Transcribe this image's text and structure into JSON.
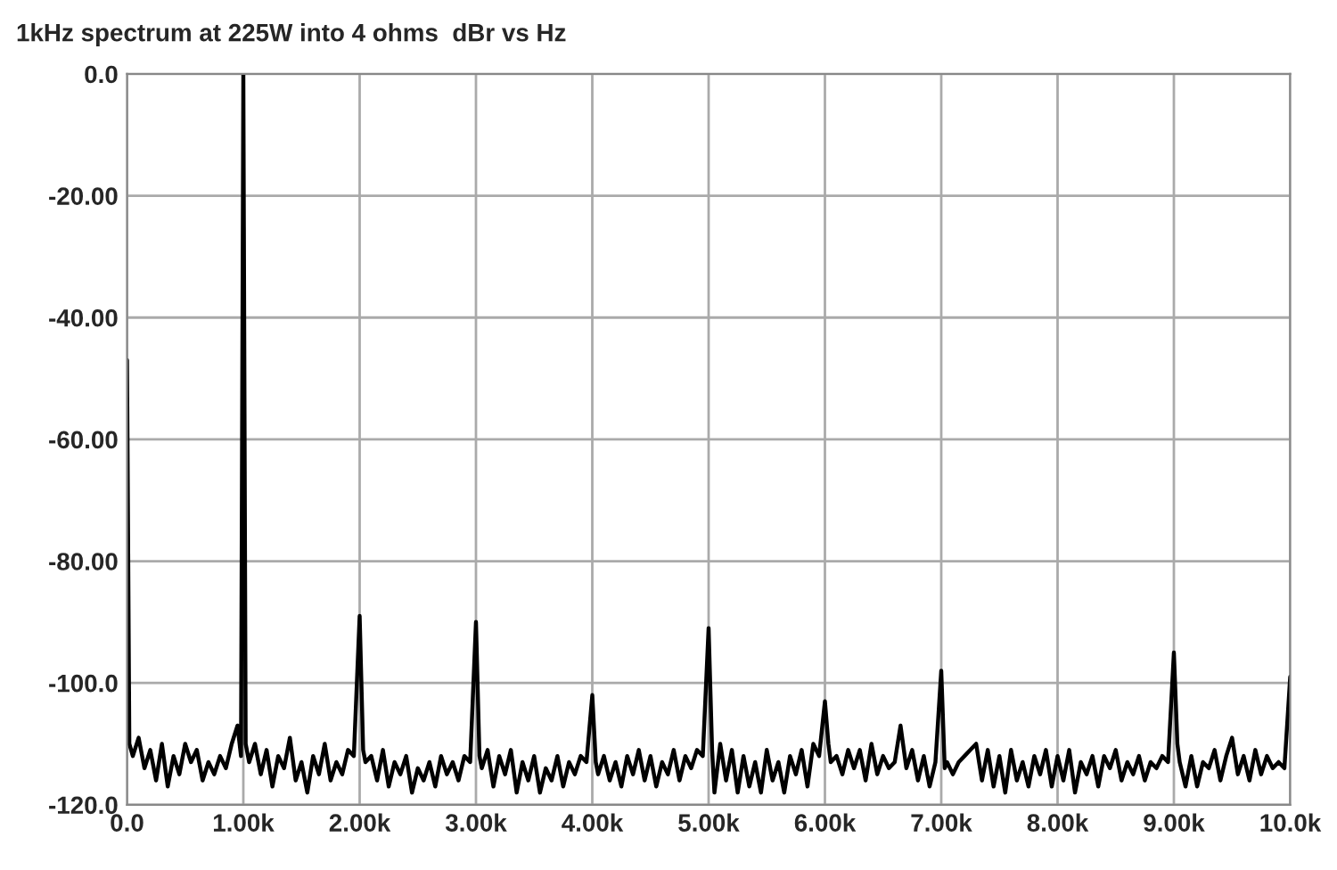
{
  "chart_data": {
    "type": "line",
    "title": "1kHz spectrum at 225W into 4 ohms  dBr vs Hz",
    "xlim": [
      0,
      10000
    ],
    "ylim": [
      -120,
      0
    ],
    "xticks": [
      {
        "value": 0,
        "label": "0.0"
      },
      {
        "value": 1000,
        "label": "1.00k"
      },
      {
        "value": 2000,
        "label": "2.00k"
      },
      {
        "value": 3000,
        "label": "3.00k"
      },
      {
        "value": 4000,
        "label": "4.00k"
      },
      {
        "value": 5000,
        "label": "5.00k"
      },
      {
        "value": 6000,
        "label": "6.00k"
      },
      {
        "value": 7000,
        "label": "7.00k"
      },
      {
        "value": 8000,
        "label": "8.00k"
      },
      {
        "value": 9000,
        "label": "9.00k"
      },
      {
        "value": 10000,
        "label": "10.0k"
      }
    ],
    "yticks": [
      {
        "value": 0,
        "label": "0.0"
      },
      {
        "value": -20,
        "label": "-20.00"
      },
      {
        "value": -40,
        "label": "-40.00"
      },
      {
        "value": -60,
        "label": "-60.00"
      },
      {
        "value": -80,
        "label": "-80.00"
      },
      {
        "value": -100,
        "label": "-100.0"
      },
      {
        "value": -120,
        "label": "-120.0"
      }
    ],
    "grid": true,
    "legend": false,
    "marker": "none",
    "line_style": "solid",
    "series": [
      {
        "color": "#000000",
        "x": [
          0,
          20,
          50,
          100,
          150,
          200,
          250,
          300,
          350,
          400,
          450,
          500,
          550,
          600,
          650,
          700,
          750,
          800,
          850,
          900,
          950,
          980,
          1000,
          1020,
          1050,
          1100,
          1150,
          1200,
          1250,
          1300,
          1350,
          1400,
          1450,
          1500,
          1550,
          1600,
          1650,
          1700,
          1750,
          1800,
          1850,
          1900,
          1950,
          2000,
          2030,
          2050,
          2100,
          2150,
          2200,
          2250,
          2300,
          2350,
          2400,
          2450,
          2500,
          2550,
          2600,
          2650,
          2700,
          2750,
          2800,
          2850,
          2900,
          2950,
          3000,
          3030,
          3050,
          3100,
          3150,
          3200,
          3250,
          3300,
          3350,
          3400,
          3450,
          3500,
          3550,
          3600,
          3650,
          3700,
          3750,
          3800,
          3850,
          3900,
          3950,
          4000,
          4030,
          4050,
          4100,
          4150,
          4200,
          4250,
          4300,
          4350,
          4400,
          4450,
          4500,
          4550,
          4600,
          4650,
          4700,
          4750,
          4800,
          4850,
          4900,
          4950,
          5000,
          5030,
          5050,
          5100,
          5150,
          5200,
          5250,
          5300,
          5350,
          5400,
          5450,
          5500,
          5550,
          5600,
          5650,
          5700,
          5750,
          5800,
          5850,
          5900,
          5950,
          6000,
          6030,
          6050,
          6100,
          6150,
          6200,
          6250,
          6300,
          6350,
          6400,
          6450,
          6500,
          6550,
          6600,
          6650,
          6700,
          6750,
          6800,
          6850,
          6900,
          6950,
          7000,
          7030,
          7050,
          7100,
          7150,
          7200,
          7250,
          7300,
          7350,
          7400,
          7450,
          7500,
          7550,
          7600,
          7650,
          7700,
          7750,
          7800,
          7850,
          7900,
          7950,
          8000,
          8050,
          8100,
          8150,
          8200,
          8250,
          8300,
          8350,
          8400,
          8450,
          8500,
          8550,
          8600,
          8650,
          8700,
          8750,
          8800,
          8850,
          8900,
          8950,
          9000,
          9030,
          9050,
          9100,
          9150,
          9200,
          9250,
          9300,
          9350,
          9400,
          9450,
          9500,
          9550,
          9600,
          9650,
          9700,
          9750,
          9800,
          9850,
          9900,
          9950,
          10000
        ],
        "values": [
          -47,
          -110,
          -112,
          -109,
          -114,
          -111,
          -116,
          -110,
          -117,
          -112,
          -115,
          -110,
          -113,
          -111,
          -116,
          -113,
          -115,
          -112,
          -114,
          -110,
          -107,
          -112,
          0,
          -110,
          -113,
          -110,
          -115,
          -111,
          -117,
          -112,
          -114,
          -109,
          -116,
          -113,
          -118,
          -112,
          -115,
          -110,
          -116,
          -113,
          -115,
          -111,
          -112,
          -89,
          -111,
          -113,
          -112,
          -116,
          -111,
          -117,
          -113,
          -115,
          -112,
          -118,
          -114,
          -116,
          -113,
          -117,
          -112,
          -115,
          -113,
          -116,
          -112,
          -113,
          -90,
          -112,
          -114,
          -111,
          -117,
          -112,
          -115,
          -111,
          -118,
          -113,
          -116,
          -112,
          -118,
          -114,
          -116,
          -112,
          -117,
          -113,
          -115,
          -112,
          -113,
          -102,
          -113,
          -115,
          -112,
          -116,
          -113,
          -117,
          -112,
          -115,
          -111,
          -116,
          -112,
          -117,
          -113,
          -115,
          -111,
          -116,
          -112,
          -114,
          -111,
          -112,
          -91,
          -111,
          -118,
          -110,
          -116,
          -111,
          -118,
          -112,
          -117,
          -113,
          -118,
          -111,
          -116,
          -113,
          -118,
          -112,
          -115,
          -111,
          -117,
          -110,
          -112,
          -103,
          -110,
          -113,
          -112,
          -115,
          -111,
          -114,
          -111,
          -116,
          -110,
          -115,
          -112,
          -114,
          -113,
          -107,
          -114,
          -111,
          -116,
          -112,
          -117,
          -113,
          -98,
          -114,
          -113,
          -115,
          -113,
          -112,
          -111,
          -110,
          -116,
          -111,
          -117,
          -112,
          -118,
          -111,
          -116,
          -113,
          -117,
          -112,
          -115,
          -111,
          -117,
          -112,
          -116,
          -111,
          -118,
          -113,
          -115,
          -112,
          -117,
          -112,
          -114,
          -111,
          -116,
          -113,
          -115,
          -112,
          -116,
          -113,
          -114,
          -112,
          -113,
          -95,
          -110,
          -113,
          -117,
          -112,
          -117,
          -113,
          -114,
          -111,
          -116,
          -112,
          -109,
          -115,
          -112,
          -116,
          -111,
          -115,
          -112,
          -114,
          -113,
          -114,
          -99
        ]
      }
    ]
  }
}
